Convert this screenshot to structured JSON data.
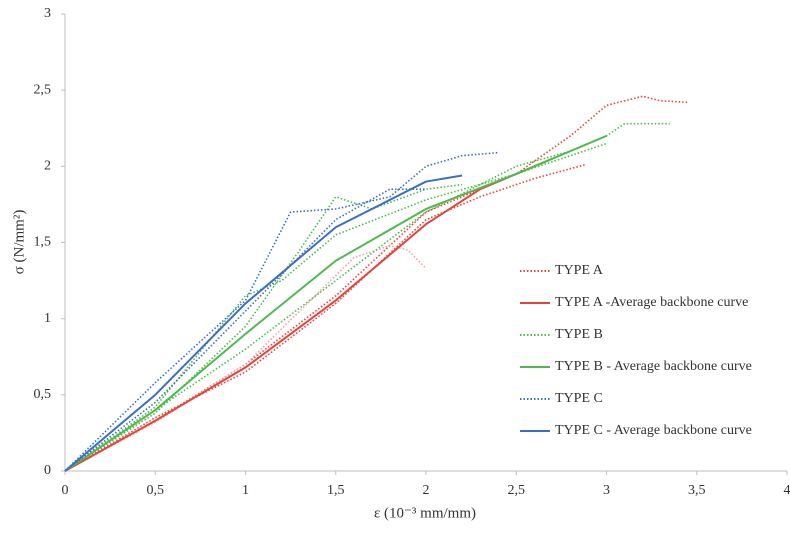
{
  "chart_data": {
    "type": "line",
    "x_label": "ε (10⁻³ mm/mm)",
    "y_label": "σ (N/mm²)",
    "xlim": [
      0,
      4
    ],
    "ylim": [
      0,
      3
    ],
    "xticks": [
      0,
      {
        "value": 0.5,
        "label": "0,5"
      },
      1,
      {
        "value": 1.5,
        "label": "1,5"
      },
      2,
      {
        "value": 2.5,
        "label": "2,5"
      },
      3,
      {
        "value": 3.5,
        "label": "3,5"
      },
      4
    ],
    "yticks": [
      0,
      {
        "value": 0.5,
        "label": "0,5"
      },
      1,
      {
        "value": 1.5,
        "label": "1,5"
      },
      2,
      {
        "value": 2.5,
        "label": "2,5"
      },
      3
    ],
    "legend": "right",
    "series": [
      {
        "name": "TYPE A",
        "color": "#e8433a",
        "style": "dotted",
        "x": [
          0,
          0.5,
          1,
          1.5,
          2,
          2.5,
          2.8,
          3,
          3.2,
          3.3,
          3.45
        ],
        "values": [
          0,
          0.33,
          0.7,
          1.15,
          1.7,
          1.95,
          2.2,
          2.4,
          2.46,
          2.43,
          2.42
        ]
      },
      {
        "color": "#e8433a",
        "style": "dotted",
        "x": [
          0,
          0.5,
          1,
          1.5,
          2,
          2.3,
          2.6,
          2.88
        ],
        "values": [
          0,
          0.35,
          0.65,
          1.1,
          1.65,
          1.8,
          1.92,
          2.01
        ]
      },
      {
        "color": "#f4a0a0",
        "style": "dotted",
        "x": [
          0,
          0.5,
          1,
          1.3,
          1.6,
          1.8,
          1.9,
          2
        ],
        "values": [
          0,
          0.32,
          0.7,
          1.05,
          1.4,
          1.48,
          1.45,
          1.33
        ]
      },
      {
        "name": "TYPE A -Average backbone curve",
        "color": "#e8433a",
        "style": "solid",
        "x": [
          0,
          0.5,
          1,
          1.5,
          2,
          2.3,
          2.7
        ],
        "values": [
          0,
          0.33,
          0.68,
          1.12,
          1.62,
          1.85,
          2.05
        ]
      },
      {
        "name": "TYPE B",
        "color": "#4cbb4c",
        "style": "dotted",
        "x": [
          0,
          0.5,
          1,
          1.5,
          2,
          2.5,
          2.8,
          3,
          3.1,
          3.35
        ],
        "values": [
          0,
          0.4,
          0.8,
          1.25,
          1.7,
          2,
          2.1,
          2.2,
          2.28,
          2.28
        ]
      },
      {
        "color": "#4cbb4c",
        "style": "dotted",
        "x": [
          0,
          0.5,
          1,
          1.3,
          1.5,
          1.7,
          2,
          2.2
        ],
        "values": [
          0,
          0.38,
          0.95,
          1.45,
          1.8,
          1.72,
          1.85,
          1.88
        ]
      },
      {
        "color": "#4cbb4c",
        "style": "dotted",
        "x": [
          0,
          0.5,
          1,
          1.2,
          1.5,
          2,
          2.5,
          3
        ],
        "values": [
          0,
          0.42,
          1.15,
          1.25,
          1.55,
          1.78,
          1.95,
          2.15
        ]
      },
      {
        "name": "TYPE B - Average backbone curve",
        "color": "#4cbb4c",
        "style": "solid",
        "x": [
          0,
          0.5,
          1,
          1.5,
          2,
          2.5,
          3
        ],
        "values": [
          0,
          0.4,
          0.9,
          1.38,
          1.72,
          1.95,
          2.2
        ]
      },
      {
        "name": "TYPE C",
        "color": "#3a6fc4",
        "style": "dotted",
        "x": [
          0,
          0.5,
          1,
          1.25,
          1.5,
          1.8,
          2,
          2.2,
          2.4
        ],
        "values": [
          0,
          0.58,
          1.12,
          1.7,
          1.72,
          1.8,
          2,
          2.07,
          2.09
        ]
      },
      {
        "color": "#3a6fc4",
        "style": "dotted",
        "x": [
          0,
          0.5,
          1,
          1.5,
          1.8,
          2
        ],
        "values": [
          0,
          0.45,
          1.05,
          1.65,
          1.85,
          1.85
        ]
      },
      {
        "name": "TYPE C - Average backbone curve",
        "color": "#3a6fc4",
        "style": "solid",
        "x": [
          0,
          0.5,
          1,
          1.5,
          2,
          2.2
        ],
        "values": [
          0,
          0.5,
          1.1,
          1.6,
          1.9,
          1.94
        ]
      }
    ]
  }
}
